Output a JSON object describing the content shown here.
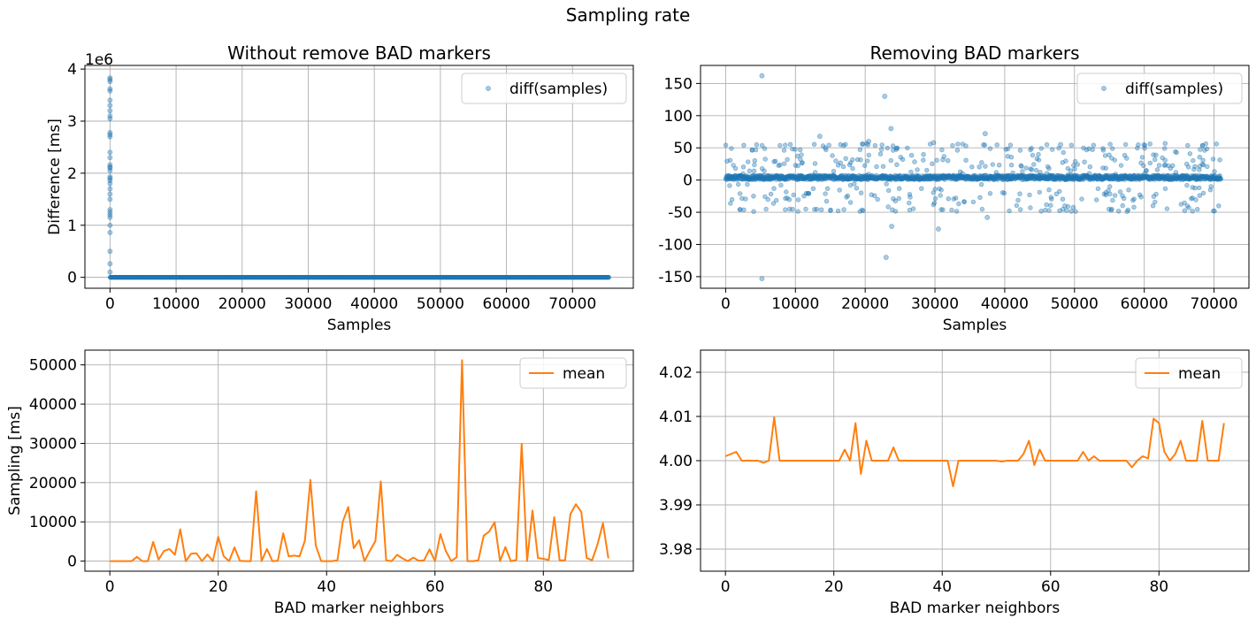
{
  "figure": {
    "suptitle": "Sampling rate"
  },
  "colors": {
    "blue": "#1f77b4",
    "orange": "#ff7f0e",
    "grid": "#b0b0b0"
  },
  "chart_data": [
    {
      "id": "top-left",
      "type": "scatter",
      "title": "Without remove BAD markers",
      "xlabel": "Samples",
      "ylabel": "Difference [ms]",
      "y_scale_label": "1e6",
      "xlim": [
        -3800,
        79200
      ],
      "ylim": [
        -210000,
        4070000
      ],
      "xticks": [
        0,
        10000,
        20000,
        30000,
        40000,
        50000,
        60000,
        70000
      ],
      "yticks": [
        0,
        1000000,
        2000000,
        3000000,
        4000000
      ],
      "ytick_labels": [
        "0",
        "1",
        "2",
        "3",
        "4"
      ],
      "grid": true,
      "legend": {
        "position": "top-right",
        "entries": [
          "diff(samples)"
        ]
      },
      "series": [
        {
          "name": "diff(samples)",
          "baseline": {
            "x_start": 0,
            "x_end": 75500,
            "y": 4
          },
          "outliers_x": 0,
          "outliers_y": [
            3830000,
            3800000,
            3760000,
            3620000,
            3580000,
            3400000,
            3300000,
            3200000,
            3100000,
            3050000,
            2780000,
            2740000,
            2700000,
            2400000,
            2300000,
            2160000,
            2120000,
            2100000,
            2050000,
            1930000,
            1900000,
            1860000,
            1800000,
            1700000,
            1600000,
            1500000,
            1300000,
            1250000,
            1200000,
            1150000,
            1000000,
            860000,
            500000,
            260000,
            100000
          ]
        }
      ]
    },
    {
      "id": "top-right",
      "type": "scatter",
      "title": "Removing BAD markers",
      "xlabel": "Samples",
      "ylabel": "",
      "xlim": [
        -3600,
        75000
      ],
      "ylim": [
        -168,
        178
      ],
      "xticks": [
        0,
        10000,
        20000,
        30000,
        40000,
        50000,
        60000,
        70000
      ],
      "yticks": [
        -150,
        -100,
        -50,
        0,
        50,
        100,
        150
      ],
      "grid": true,
      "legend": {
        "position": "top-right",
        "entries": [
          "diff(samples)"
        ]
      },
      "series": [
        {
          "name": "diff(samples)",
          "baseline": {
            "x_start": 0,
            "x_end": 71000,
            "y": 4
          },
          "points": [
            [
              5200,
              162
            ],
            [
              5200,
              -153
            ],
            [
              22800,
              130
            ],
            [
              23000,
              -120
            ],
            [
              23700,
              80
            ],
            [
              23800,
              -72
            ],
            [
              30500,
              -76
            ],
            [
              37200,
              72
            ],
            [
              37500,
              -58
            ],
            [
              13500,
              68
            ],
            [
              20500,
              60
            ],
            [
              29800,
              58
            ],
            [
              48000,
              55
            ]
          ],
          "band_levels": [
            55,
            48,
            38,
            30,
            22,
            15,
            -15,
            -22,
            -30,
            -38,
            -47
          ]
        }
      ]
    },
    {
      "id": "bottom-left",
      "type": "line",
      "title": "",
      "xlabel": "BAD marker neighbors",
      "ylabel": "Sampling [ms]",
      "xlim": [
        -4.6,
        96.6
      ],
      "ylim": [
        -2560,
        53760
      ],
      "xticks": [
        0,
        20,
        40,
        60,
        80
      ],
      "yticks": [
        0,
        10000,
        20000,
        30000,
        40000,
        50000
      ],
      "grid": true,
      "legend": {
        "position": "top-right",
        "entries": [
          "mean"
        ]
      },
      "series": [
        {
          "name": "mean",
          "x": [
            0,
            1,
            2,
            3,
            4,
            5,
            6,
            7,
            8,
            9,
            10,
            11,
            12,
            13,
            14,
            15,
            16,
            17,
            18,
            19,
            20,
            21,
            22,
            23,
            24,
            25,
            26,
            27,
            28,
            29,
            30,
            31,
            32,
            33,
            34,
            35,
            36,
            37,
            38,
            39,
            40,
            41,
            42,
            43,
            44,
            45,
            46,
            47,
            48,
            49,
            50,
            51,
            52,
            53,
            54,
            55,
            56,
            57,
            58,
            59,
            60,
            61,
            62,
            63,
            64,
            65,
            66,
            67,
            68,
            69,
            70,
            71,
            72,
            73,
            74,
            75,
            76,
            77,
            78,
            79,
            80,
            81,
            82,
            83,
            84,
            85,
            86,
            87,
            88,
            89,
            90,
            91,
            92
          ],
          "y": [
            0,
            0,
            0,
            0,
            0,
            1100,
            0,
            0,
            4900,
            400,
            2600,
            3100,
            1600,
            8100,
            0,
            1900,
            2000,
            0,
            1700,
            0,
            6200,
            1300,
            0,
            3500,
            100,
            0,
            0,
            17800,
            0,
            3100,
            0,
            100,
            7100,
            1200,
            1400,
            1200,
            5200,
            20700,
            4000,
            0,
            0,
            0,
            200,
            10100,
            13800,
            3300,
            5300,
            0,
            2700,
            5100,
            20300,
            200,
            0,
            1600,
            700,
            0,
            900,
            100,
            200,
            3000,
            0,
            6900,
            2600,
            0,
            1000,
            51200,
            0,
            0,
            200,
            6500,
            7500,
            9900,
            0,
            3600,
            0,
            300,
            29900,
            0,
            12900,
            800,
            600,
            300,
            11200,
            200,
            200,
            12000,
            14500,
            12500,
            800,
            200,
            4300,
            9700,
            700
          ]
        }
      ]
    },
    {
      "id": "bottom-right",
      "type": "line",
      "title": "",
      "xlabel": "BAD marker neighbors",
      "ylabel": "",
      "xlim": [
        -4.6,
        96.6
      ],
      "ylim": [
        3.975,
        4.025
      ],
      "xticks": [
        0,
        20,
        40,
        60,
        80
      ],
      "yticks": [
        3.98,
        3.99,
        4.0,
        4.01,
        4.02
      ],
      "ytick_labels": [
        "3.98",
        "3.99",
        "4.00",
        "4.01",
        "4.02"
      ],
      "grid": true,
      "legend": {
        "position": "top-right",
        "entries": [
          "mean"
        ]
      },
      "series": [
        {
          "name": "mean",
          "x": [
            0,
            1,
            2,
            3,
            4,
            5,
            6,
            7,
            8,
            9,
            10,
            11,
            12,
            13,
            14,
            15,
            16,
            17,
            18,
            19,
            20,
            21,
            22,
            23,
            24,
            25,
            26,
            27,
            28,
            29,
            30,
            31,
            32,
            33,
            34,
            35,
            36,
            37,
            38,
            39,
            40,
            41,
            42,
            43,
            44,
            45,
            46,
            47,
            48,
            49,
            50,
            51,
            52,
            53,
            54,
            55,
            56,
            57,
            58,
            59,
            60,
            61,
            62,
            63,
            64,
            65,
            66,
            67,
            68,
            69,
            70,
            71,
            72,
            73,
            74,
            75,
            76,
            77,
            78,
            79,
            80,
            81,
            82,
            83,
            84,
            85,
            86,
            87,
            88,
            89,
            90,
            91,
            92
          ],
          "y": [
            4.001,
            4.0015,
            4.002,
            4.0,
            4.0,
            4.0,
            4.0,
            3.9995,
            4.0,
            4.0098,
            4.0,
            4.0,
            4.0,
            4.0,
            4.0,
            4.0,
            4.0,
            4.0,
            4.0,
            4.0,
            4.0,
            4.0,
            4.0025,
            4.0,
            4.0085,
            3.997,
            4.0045,
            4.0,
            4.0,
            4.0,
            4.0,
            4.003,
            4.0,
            4.0,
            4.0,
            4.0,
            4.0,
            4.0,
            4.0,
            4.0,
            4.0,
            4.0,
            3.9942,
            4.0,
            4.0,
            4.0,
            4.0,
            4.0,
            4.0,
            4.0,
            4.0,
            3.9998,
            4.0,
            4.0,
            4.0,
            4.0015,
            4.0045,
            3.999,
            4.0025,
            4.0,
            4.0,
            4.0,
            4.0,
            4.0,
            4.0,
            4.0,
            4.002,
            4.0,
            4.001,
            4.0,
            4.0,
            4.0,
            4.0,
            4.0,
            4.0,
            3.9985,
            4.0,
            4.001,
            4.0005,
            4.0095,
            4.0085,
            4.002,
            4.0,
            4.0015,
            4.0045,
            4.0,
            4.0,
            4.0,
            4.009,
            4.0,
            4.0,
            4.0,
            4.0085
          ]
        }
      ]
    }
  ]
}
